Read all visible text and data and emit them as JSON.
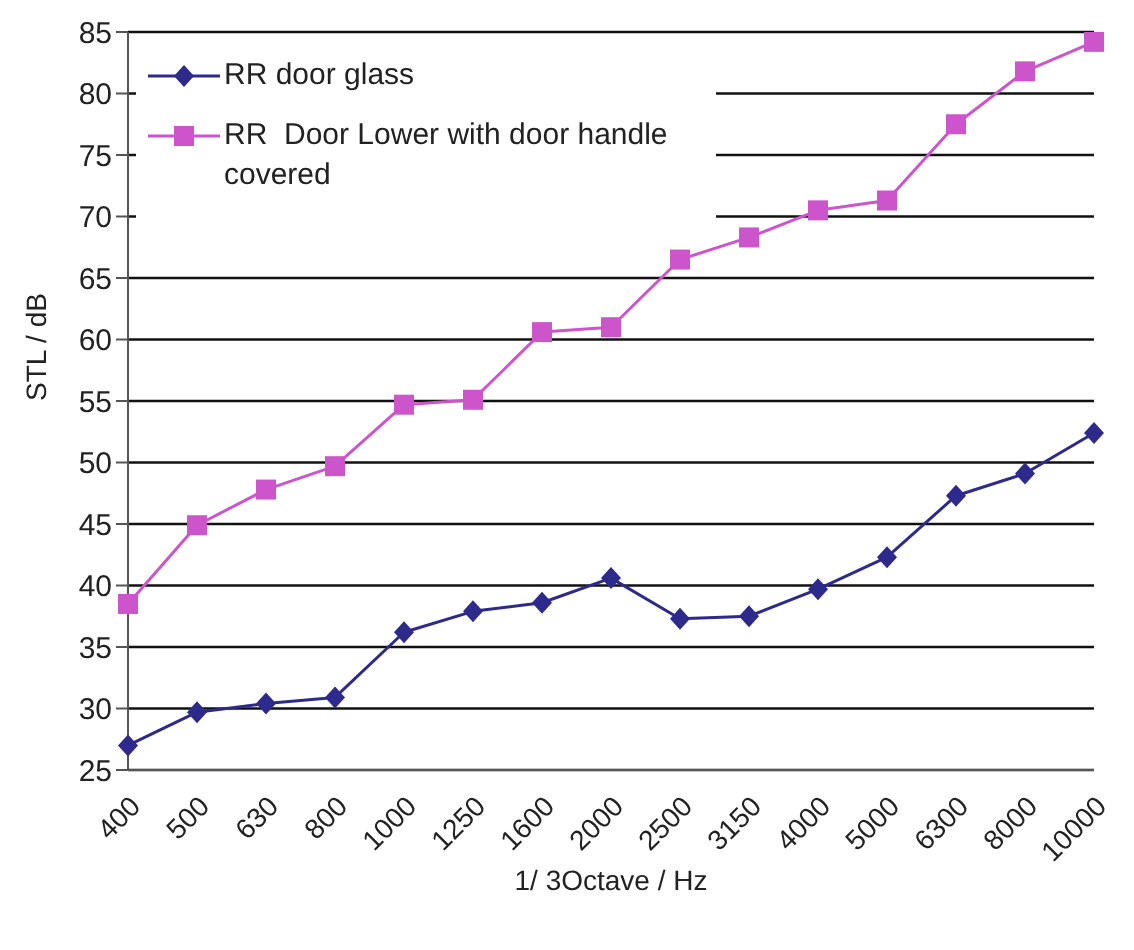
{
  "chart_data": {
    "type": "line",
    "xlabel": "1/ 3Octave / Hz",
    "ylabel": "STL  / dB",
    "categories": [
      "400",
      "500",
      "630",
      "800",
      "1000",
      "1250",
      "1600",
      "2000",
      "2500",
      "3150",
      "4000",
      "5000",
      "6300",
      "8000",
      "10000"
    ],
    "series": [
      {
        "name": "RR door glass",
        "color": "#2e2a8c",
        "marker": "diamond",
        "values": [
          27,
          29.7,
          30.4,
          30.9,
          36.2,
          37.9,
          38.6,
          40.6,
          37.3,
          37.5,
          39.7,
          42.3,
          47.3,
          49.1,
          52.4
        ]
      },
      {
        "name": "RR  Door Lower with door handle covered",
        "color": "#cc55cc",
        "marker": "square",
        "values": [
          38.5,
          44.9,
          47.8,
          49.7,
          54.7,
          55.1,
          60.6,
          61,
          66.5,
          68.3,
          70.5,
          71.3,
          77.5,
          81.8,
          84.2
        ]
      }
    ],
    "ylim": [
      25,
      85
    ],
    "yticks": [
      25,
      30,
      35,
      40,
      45,
      50,
      55,
      60,
      65,
      70,
      75,
      80,
      85
    ],
    "grid": "y",
    "legend": "top left",
    "line_style": "solid"
  }
}
